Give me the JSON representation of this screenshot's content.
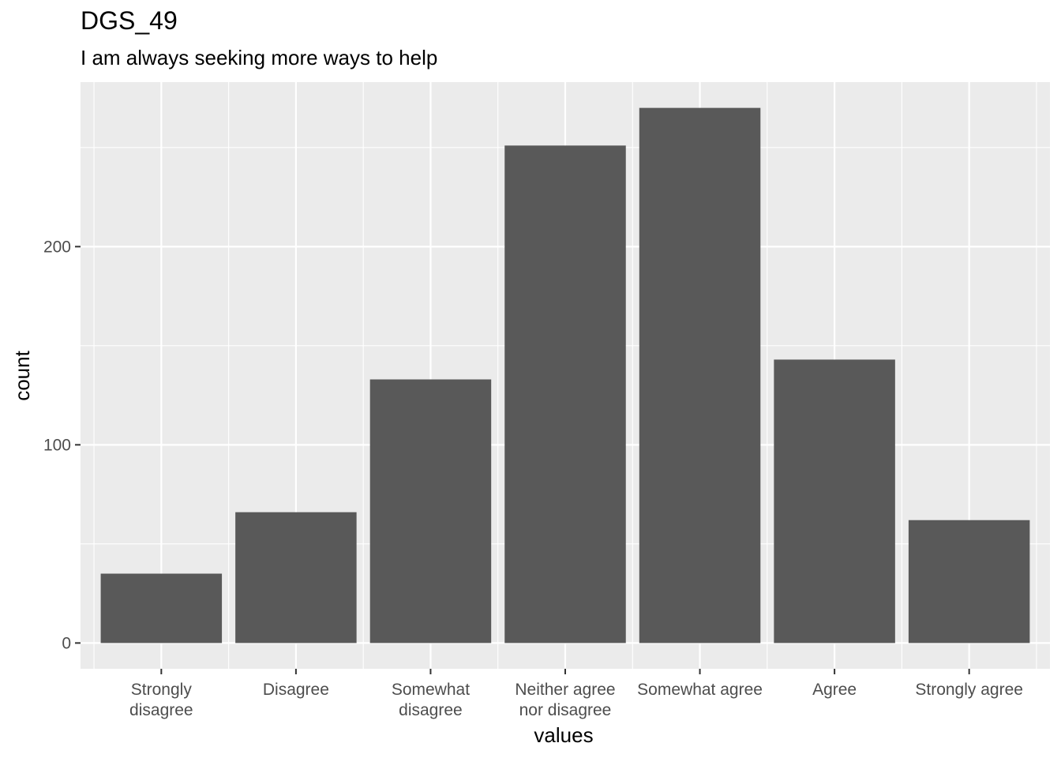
{
  "chart_data": {
    "type": "bar",
    "title": "DGS_49",
    "subtitle": "I am always seeking more ways to help",
    "xlabel": "values",
    "ylabel": "count",
    "categories": [
      [
        "Strongly",
        "disagree"
      ],
      [
        "Disagree"
      ],
      [
        "Somewhat",
        "disagree"
      ],
      [
        "Neither agree",
        "nor disagree"
      ],
      [
        "Somewhat agree"
      ],
      [
        "Agree"
      ],
      [
        "Strongly agree"
      ]
    ],
    "values": [
      35,
      66,
      133,
      251,
      270,
      143,
      62
    ],
    "yticks": [
      0,
      100,
      200
    ],
    "ylim": [
      -13,
      283
    ],
    "grid": true,
    "colors": {
      "bar": "#595959",
      "panel": "#ebebeb",
      "grid": "#ffffff"
    }
  }
}
